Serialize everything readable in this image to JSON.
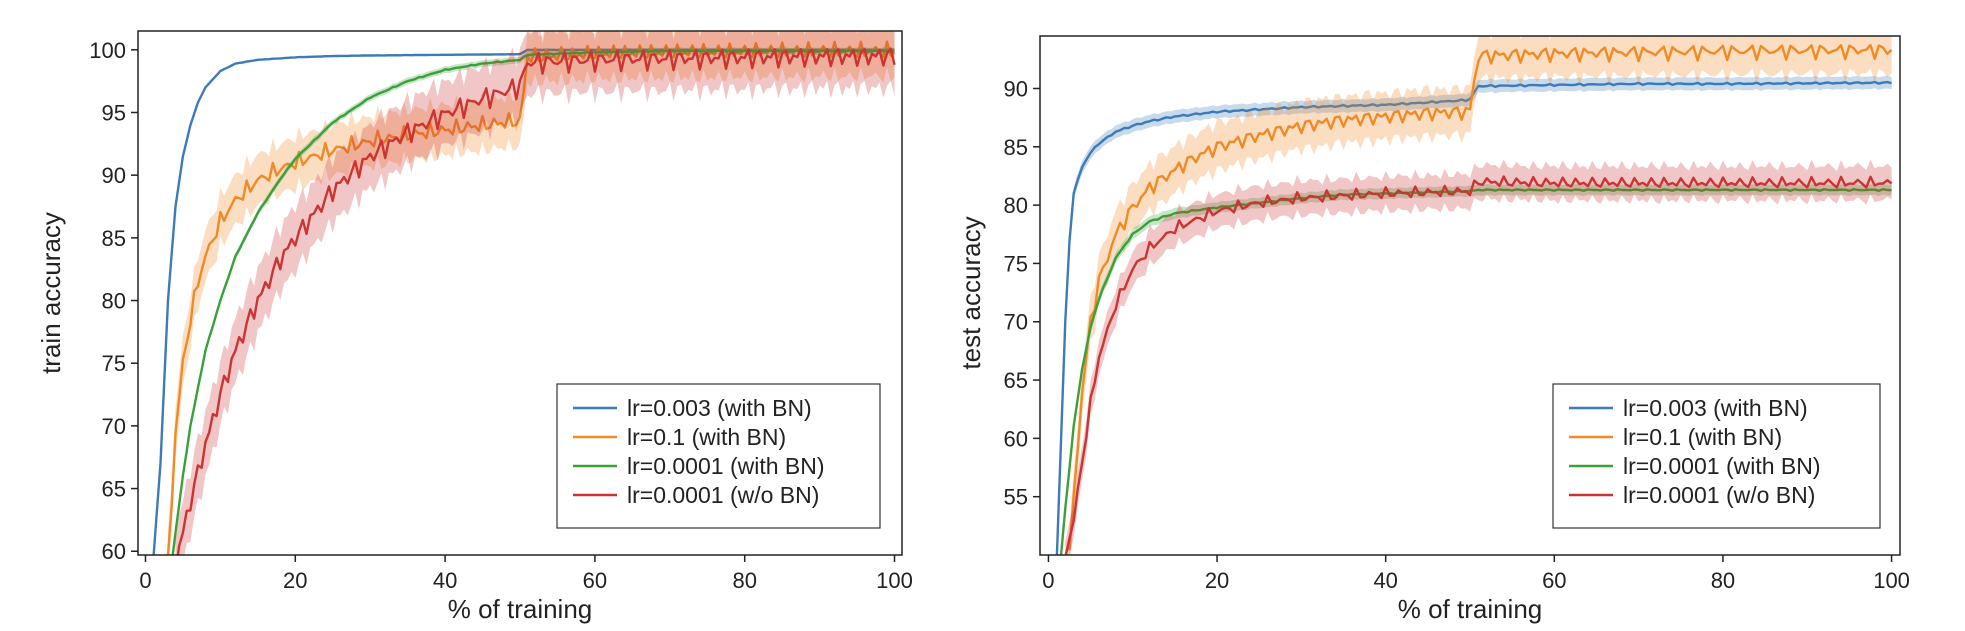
{
  "chart_data": [
    {
      "type": "line",
      "xlabel": "% of training",
      "ylabel": "train accuracy",
      "xlim": [
        -1,
        101
      ],
      "ylim": [
        59.7,
        101.5
      ],
      "xticks": [
        0,
        20,
        40,
        60,
        80,
        100
      ],
      "yticks": [
        60,
        65,
        70,
        75,
        80,
        85,
        90,
        95,
        100
      ],
      "legend_position": "bottom-right",
      "series": [
        {
          "name": "lr=0.003 (with BN)",
          "color": "#3d7ab8",
          "band": 0.05,
          "x": [
            1,
            2,
            3,
            4,
            5,
            6,
            7,
            8,
            10,
            12,
            15,
            20,
            25,
            30,
            40,
            50,
            51,
            60,
            70,
            80,
            90,
            100
          ],
          "y": [
            59,
            67,
            80,
            87.5,
            91.5,
            94,
            95.8,
            97,
            98.3,
            98.9,
            99.2,
            99.4,
            99.5,
            99.55,
            99.6,
            99.65,
            100,
            100,
            100,
            100,
            100,
            100
          ]
        },
        {
          "name": "lr=0.1 (with BN)",
          "color": "#f08a24",
          "band": 2.2,
          "x": [
            3,
            3.5,
            4,
            5,
            6,
            7,
            8,
            10,
            12,
            15,
            18,
            20,
            25,
            30,
            35,
            40,
            45,
            49.5,
            50,
            51,
            60,
            70,
            80,
            90,
            100
          ],
          "y": [
            59,
            64,
            69.5,
            75,
            78.5,
            81.5,
            83.5,
            86.3,
            88,
            89.6,
            90.5,
            91,
            92,
            92.7,
            93.2,
            93.6,
            94,
            94.3,
            94.2,
            99.4,
            99.7,
            99.8,
            99.85,
            99.9,
            99.9
          ]
        },
        {
          "name": "lr=0.0001 (with BN)",
          "color": "#3aa13a",
          "band": 0.3,
          "x": [
            3.5,
            4,
            5,
            6,
            8,
            10,
            12,
            15,
            18,
            20,
            25,
            30,
            35,
            40,
            45,
            50,
            51,
            60,
            70,
            80,
            90,
            100
          ],
          "y": [
            59,
            61.5,
            66,
            70,
            76,
            80,
            83.5,
            87,
            89.7,
            91.3,
            94.2,
            96.2,
            97.5,
            98.4,
            98.9,
            99.2,
            99.6,
            99.8,
            99.9,
            99.9,
            99.9,
            99.9
          ]
        },
        {
          "name": "lr=0.0001 (w/o BN)",
          "color": "#cc3333",
          "band": 2.8,
          "x": [
            4,
            5,
            6,
            8,
            10,
            12,
            15,
            18,
            20,
            25,
            30,
            35,
            40,
            45,
            49.5,
            50,
            51,
            60,
            70,
            80,
            90,
            100
          ],
          "y": [
            59,
            61.5,
            64,
            68.5,
            72.5,
            76,
            80,
            83.3,
            85,
            88.8,
            91.5,
            93.4,
            94.9,
            96.1,
            97,
            97.2,
            99,
            99.2,
            99.3,
            99.4,
            99.5,
            99.5
          ]
        }
      ]
    },
    {
      "type": "line",
      "xlabel": "% of training",
      "ylabel": "test accuracy",
      "xlim": [
        -1,
        101
      ],
      "ylim": [
        50,
        94.5
      ],
      "xticks": [
        0,
        20,
        40,
        60,
        80,
        100
      ],
      "yticks": [
        55,
        60,
        65,
        70,
        75,
        80,
        85,
        90
      ],
      "legend_position": "bottom-right",
      "series": [
        {
          "name": "lr=0.003 (with BN)",
          "color": "#3d7ab8",
          "band": 0.6,
          "x": [
            1,
            1.5,
            2,
            2.5,
            3,
            4,
            5,
            6,
            8,
            10,
            12,
            15,
            20,
            25,
            30,
            35,
            40,
            45,
            49.5,
            50,
            51,
            60,
            70,
            80,
            90,
            100
          ],
          "y": [
            50,
            60,
            70,
            77,
            81,
            83.3,
            84.5,
            85.3,
            86.3,
            86.8,
            87.2,
            87.6,
            88,
            88.2,
            88.4,
            88.5,
            88.6,
            88.8,
            89,
            89.1,
            90.2,
            90.3,
            90.4,
            90.4,
            90.45,
            90.5
          ]
        },
        {
          "name": "lr=0.1 (with BN)",
          "color": "#f08a24",
          "band": 2.2,
          "x": [
            2.5,
            3,
            4,
            5,
            6,
            8,
            10,
            12,
            14,
            16,
            18,
            20,
            25,
            30,
            35,
            40,
            45,
            49.5,
            50,
            51,
            60,
            70,
            80,
            90,
            100
          ],
          "y": [
            50,
            55,
            64,
            70,
            73.5,
            77.5,
            79.8,
            81.5,
            82.5,
            83.5,
            84.3,
            85,
            86,
            86.8,
            87.3,
            87.6,
            87.9,
            88,
            88.2,
            92.8,
            93,
            93.1,
            93.2,
            93.25,
            93.3
          ]
        },
        {
          "name": "lr=0.0001 (with BN)",
          "color": "#3aa13a",
          "band": 0.5,
          "x": [
            1.5,
            2,
            3,
            4,
            5,
            6,
            8,
            10,
            12,
            15,
            20,
            25,
            30,
            35,
            40,
            45,
            50,
            51,
            60,
            70,
            80,
            90,
            100
          ],
          "y": [
            50,
            54,
            61,
            66,
            69.5,
            72,
            75.5,
            77.5,
            78.6,
            79.3,
            79.8,
            80.2,
            80.6,
            80.9,
            81,
            81.1,
            81.2,
            81.3,
            81.3,
            81.3,
            81.3,
            81.3,
            81.3
          ]
        },
        {
          "name": "lr=0.0001 (w/o BN)",
          "color": "#cc3333",
          "band": 1.6,
          "x": [
            2,
            3,
            4,
            5,
            6,
            8,
            10,
            12,
            15,
            20,
            25,
            30,
            35,
            40,
            45,
            50,
            51,
            60,
            70,
            80,
            90,
            100
          ],
          "y": [
            50,
            53,
            58,
            63,
            67,
            71.5,
            74.5,
            76.3,
            78,
            79.5,
            80.2,
            80.6,
            80.8,
            81,
            81.1,
            81.2,
            82,
            81.9,
            81.9,
            81.9,
            81.9,
            81.9
          ]
        }
      ]
    }
  ]
}
